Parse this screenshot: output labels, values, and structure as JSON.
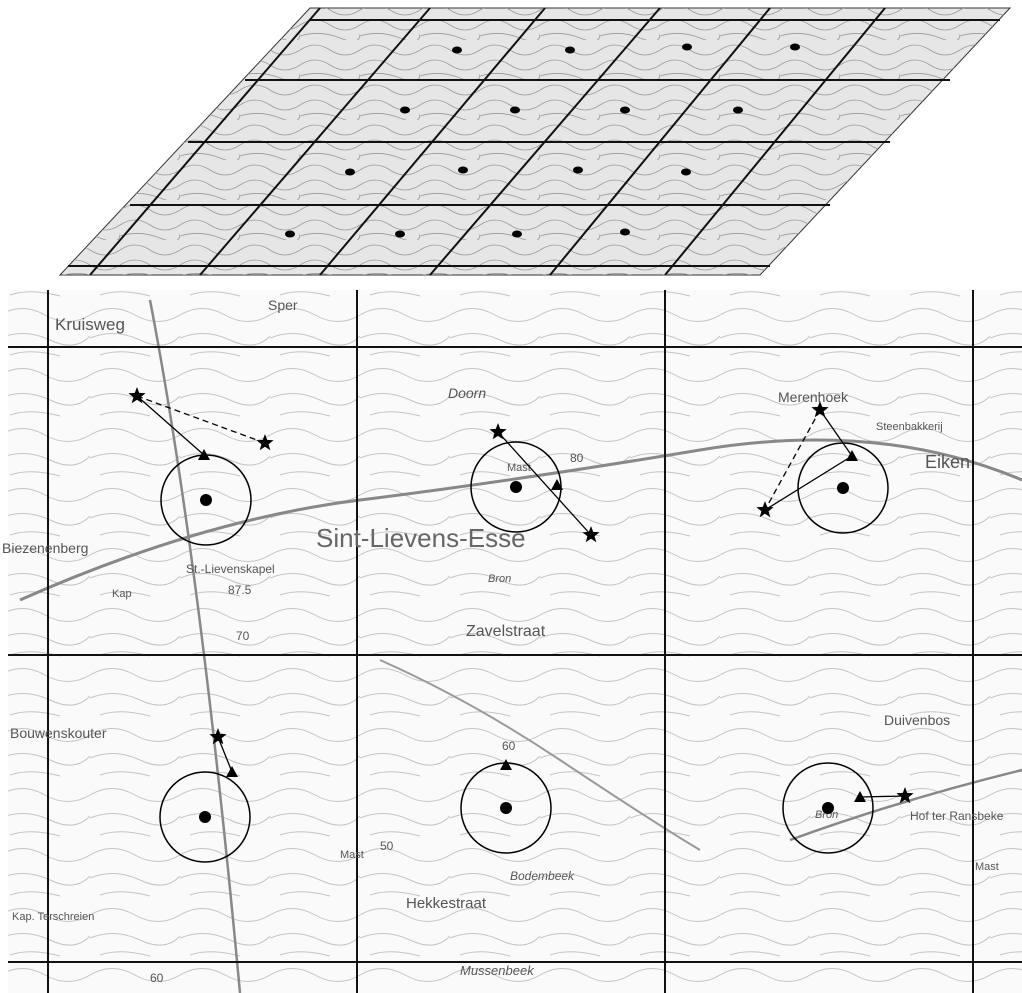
{
  "labels": {
    "kruisweg": "Kruisweg",
    "sper": "Sper",
    "doorn": "Doorn",
    "merenhoek": "Merenhoek",
    "steenbakkerij": "Steenbakkerij",
    "eiken": "Eiken",
    "biezenenberg": "Biezenenberg",
    "kap": "Kap",
    "kapel": "St.-Lievenskapel",
    "h875": "87.5",
    "esse": "Sint-Lievens-Esse",
    "mast": "Mast",
    "bron": "Bron",
    "zavelstraat": "Zavelstraat",
    "bouwenskouter": "Bouwenskouter",
    "duivenbos": "Duivenbos",
    "ransbeke": "Hof ter Ransbeke",
    "hekkestraat": "Hekkestraat",
    "bodembeek": "Bodembeek",
    "mussenbeek": "Mussenbeek",
    "terschreien": "Kap. Terschreien",
    "h60": "60",
    "h50": "50",
    "h70": "70",
    "h80": "80"
  }
}
